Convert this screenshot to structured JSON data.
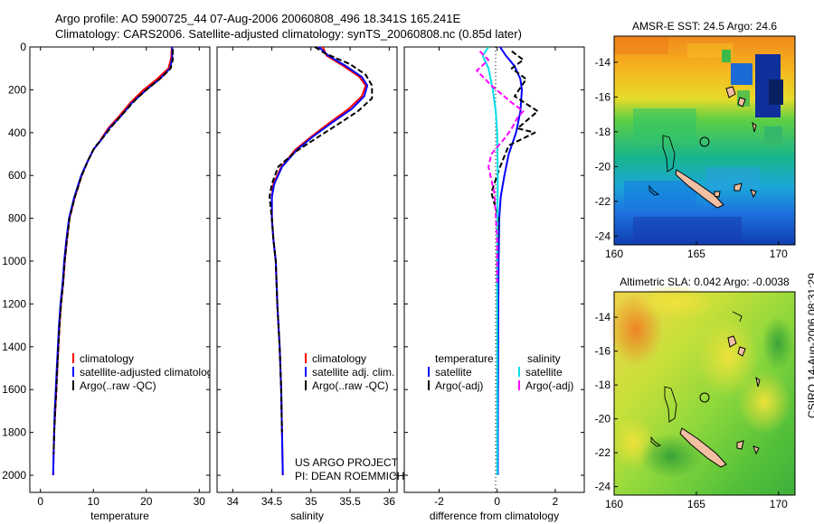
{
  "header": {
    "line1": "Argo profile: AO 5900725_44 07-Aug-2006 20060808_496 18.341S 165.241E",
    "line2": "Climatology: CARS2006. Satellite-adjusted climatology: synTS_20060808.nc (0.85d later)"
  },
  "colors": {
    "climatology": "#ff0000",
    "satellite": "#0000ff",
    "argo": "#000000",
    "sal_satellite": "#00e0e8",
    "sal_argo": "#ff00ff"
  },
  "project": {
    "line1": "US ARGO PROJECT",
    "line2": "PI: DEAN ROEMMICH"
  },
  "credit": "CSIRO 14-Aug-2006 08:31:29",
  "chart_data": [
    {
      "type": "line",
      "id": "temperature",
      "xlabel": "temperature",
      "ylabel": "",
      "xlim": [
        -2,
        32
      ],
      "ylim": [
        0,
        2080
      ],
      "y_inverted": true,
      "xticks": [
        "0",
        "10",
        "20",
        "30"
      ],
      "yticks": [
        "0",
        "200",
        "400",
        "600",
        "800",
        "1000",
        "1200",
        "1400",
        "1600",
        "1800",
        "2000"
      ],
      "legend": [
        "climatology",
        "satellite-adjusted climatology",
        "Argo(..raw -QC)"
      ],
      "series": [
        {
          "name": "climatology",
          "color": "#ff0000",
          "dash": "",
          "points": [
            [
              24.8,
              0
            ],
            [
              24.7,
              50
            ],
            [
              24.2,
              100
            ],
            [
              22,
              150
            ],
            [
              19.5,
              200
            ],
            [
              17,
              260
            ],
            [
              15,
              320
            ],
            [
              12.8,
              380
            ],
            [
              11.2,
              440
            ],
            [
              10,
              480
            ],
            [
              8.8,
              540
            ],
            [
              7.8,
              600
            ],
            [
              6.5,
              700
            ],
            [
              5.5,
              800
            ],
            [
              5,
              900
            ],
            [
              4.6,
              1000
            ],
            [
              4.3,
              1100
            ],
            [
              3.9,
              1200
            ],
            [
              3.6,
              1300
            ],
            [
              3.4,
              1400
            ],
            [
              3.2,
              1500
            ],
            [
              3,
              1600
            ],
            [
              2.8,
              1700
            ],
            [
              2.6,
              1800
            ],
            [
              2.5,
              1900
            ],
            [
              2.4,
              2000
            ]
          ]
        },
        {
          "name": "satellite-adjusted climatology",
          "color": "#0000ff",
          "dash": "",
          "points": [
            [
              24.9,
              0
            ],
            [
              24.9,
              50
            ],
            [
              24.5,
              100
            ],
            [
              22.5,
              150
            ],
            [
              20,
              200
            ],
            [
              17.3,
              260
            ],
            [
              15.3,
              320
            ],
            [
              13,
              380
            ],
            [
              11.3,
              440
            ],
            [
              10,
              480
            ],
            [
              8.8,
              540
            ],
            [
              7.7,
              600
            ],
            [
              6.4,
              700
            ],
            [
              5.4,
              800
            ],
            [
              4.9,
              900
            ],
            [
              4.5,
              1000
            ],
            [
              4.2,
              1100
            ],
            [
              3.8,
              1200
            ],
            [
              3.5,
              1300
            ],
            [
              3.3,
              1400
            ],
            [
              3.1,
              1500
            ],
            [
              2.9,
              1600
            ],
            [
              2.7,
              1700
            ],
            [
              2.6,
              1800
            ],
            [
              2.5,
              1900
            ],
            [
              2.4,
              2000
            ]
          ]
        },
        {
          "name": "Argo(..raw -QC)",
          "color": "#000000",
          "dash": "6,3",
          "points": [
            [
              25,
              10
            ],
            [
              25,
              60
            ],
            [
              24.6,
              100
            ],
            [
              23,
              140
            ],
            [
              20.5,
              190
            ],
            [
              18.2,
              240
            ],
            [
              16,
              300
            ],
            [
              13.5,
              370
            ],
            [
              11.6,
              430
            ],
            [
              10.2,
              470
            ],
            [
              9,
              530
            ],
            [
              7.8,
              600
            ],
            [
              6.5,
              700
            ],
            [
              5.5,
              800
            ],
            [
              5,
              900
            ],
            [
              4.6,
              1000
            ],
            [
              4.3,
              1100
            ],
            [
              3.9,
              1200
            ],
            [
              3.6,
              1300
            ],
            [
              3.4,
              1400
            ],
            [
              3.2,
              1500
            ],
            [
              3,
              1600
            ],
            [
              2.8,
              1700
            ],
            [
              2.6,
              1800
            ],
            [
              2.5,
              1900
            ]
          ]
        }
      ]
    },
    {
      "type": "line",
      "id": "salinity",
      "xlabel": "salinity",
      "xlim": [
        33.8,
        36.1
      ],
      "ylim": [
        0,
        2080
      ],
      "y_inverted": true,
      "xticks": [
        "34",
        "34.5",
        "35",
        "35.5",
        "36"
      ],
      "legend": [
        "climatology",
        "satellite adj. clim.",
        "Argo(..raw -QC)"
      ],
      "series": [
        {
          "name": "climatology",
          "color": "#ff0000",
          "dash": "",
          "points": [
            [
              35.15,
              0
            ],
            [
              35.2,
              40
            ],
            [
              35.42,
              90
            ],
            [
              35.62,
              140
            ],
            [
              35.7,
              180
            ],
            [
              35.65,
              230
            ],
            [
              35.48,
              290
            ],
            [
              35.25,
              350
            ],
            [
              35.0,
              420
            ],
            [
              34.8,
              480
            ],
            [
              34.62,
              560
            ],
            [
              34.52,
              640
            ],
            [
              34.5,
              700
            ],
            [
              34.5,
              800
            ],
            [
              34.52,
              900
            ],
            [
              34.55,
              1000
            ],
            [
              34.57,
              1200
            ],
            [
              34.6,
              1400
            ],
            [
              34.62,
              1600
            ],
            [
              34.63,
              1800
            ],
            [
              34.64,
              2000
            ]
          ]
        },
        {
          "name": "satellite adj. clim.",
          "color": "#0000ff",
          "dash": "",
          "points": [
            [
              35.1,
              0
            ],
            [
              35.22,
              40
            ],
            [
              35.45,
              90
            ],
            [
              35.65,
              140
            ],
            [
              35.72,
              180
            ],
            [
              35.68,
              230
            ],
            [
              35.52,
              290
            ],
            [
              35.28,
              350
            ],
            [
              35.02,
              420
            ],
            [
              34.82,
              480
            ],
            [
              34.63,
              560
            ],
            [
              34.53,
              640
            ],
            [
              34.5,
              700
            ],
            [
              34.5,
              800
            ],
            [
              34.52,
              900
            ],
            [
              34.55,
              1000
            ],
            [
              34.57,
              1200
            ],
            [
              34.6,
              1400
            ],
            [
              34.62,
              1600
            ],
            [
              34.63,
              1800
            ],
            [
              34.64,
              2000
            ]
          ]
        },
        {
          "name": "Argo(..raw -QC)",
          "color": "#000000",
          "dash": "6,3",
          "points": [
            [
              35.05,
              0
            ],
            [
              35.18,
              30
            ],
            [
              35.5,
              80
            ],
            [
              35.7,
              130
            ],
            [
              35.78,
              180
            ],
            [
              35.78,
              240
            ],
            [
              35.6,
              300
            ],
            [
              35.35,
              360
            ],
            [
              35.05,
              430
            ],
            [
              34.8,
              490
            ],
            [
              34.58,
              560
            ],
            [
              34.5,
              640
            ],
            [
              34.47,
              700
            ],
            [
              34.5,
              800
            ],
            [
              34.52,
              900
            ],
            [
              34.55,
              1000
            ],
            [
              34.57,
              1200
            ],
            [
              34.6,
              1400
            ],
            [
              34.62,
              1600
            ],
            [
              34.63,
              1800
            ]
          ]
        }
      ]
    },
    {
      "type": "line",
      "id": "difference",
      "xlabel": "difference from climatology",
      "xlim": [
        -3.2,
        3.0
      ],
      "ylim": [
        0,
        2080
      ],
      "y_inverted": true,
      "xticks": [
        "-2",
        "0",
        "2"
      ],
      "legend_titles": [
        "temperature",
        "salinity"
      ],
      "legend": [
        "satellite",
        "Argo(-adj)",
        "satellite",
        "Argo(-adj)"
      ],
      "series": [
        {
          "name": "temperature satellite",
          "color": "#0000ff",
          "dash": "",
          "points": [
            [
              0.1,
              0
            ],
            [
              0.3,
              40
            ],
            [
              0.6,
              90
            ],
            [
              0.8,
              150
            ],
            [
              0.85,
              200
            ],
            [
              0.8,
              300
            ],
            [
              0.65,
              400
            ],
            [
              0.4,
              500
            ],
            [
              0.25,
              600
            ],
            [
              0.12,
              700
            ],
            [
              0.07,
              800
            ],
            [
              0.05,
              1000
            ],
            [
              0.04,
              1200
            ],
            [
              0.03,
              1500
            ],
            [
              0.02,
              1800
            ],
            [
              0.02,
              2000
            ]
          ]
        },
        {
          "name": "temperature Argo(-adj)",
          "color": "#000000",
          "dash": "6,3",
          "points": [
            [
              0.5,
              20
            ],
            [
              0.9,
              60
            ],
            [
              0.5,
              100
            ],
            [
              1.0,
              150
            ],
            [
              0.6,
              230
            ],
            [
              1.4,
              300
            ],
            [
              0.7,
              380
            ],
            [
              1.3,
              400
            ],
            [
              0.4,
              460
            ],
            [
              0.1,
              560
            ],
            [
              -0.2,
              680
            ],
            [
              0.05,
              800
            ],
            [
              0,
              1000
            ],
            [
              0.01,
              1200
            ],
            [
              0.01,
              1500
            ]
          ]
        },
        {
          "name": "salinity satellite",
          "color": "#00e0e8",
          "dash": "",
          "points": [
            [
              -0.3,
              0
            ],
            [
              -0.5,
              40
            ],
            [
              -0.3,
              100
            ],
            [
              -0.15,
              200
            ],
            [
              -0.05,
              300
            ],
            [
              0,
              400
            ],
            [
              0.02,
              600
            ],
            [
              0.01,
              800
            ],
            [
              0,
              1000
            ],
            [
              0,
              1200
            ],
            [
              0,
              1500
            ],
            [
              0,
              1800
            ],
            [
              0,
              2000
            ]
          ]
        },
        {
          "name": "salinity Argo(-adj)",
          "color": "#ff00ff",
          "dash": "6,3",
          "points": [
            [
              -0.6,
              20
            ],
            [
              -0.3,
              60
            ],
            [
              -0.7,
              110
            ],
            [
              -0.2,
              180
            ],
            [
              0.5,
              260
            ],
            [
              0.9,
              300
            ],
            [
              0.7,
              330
            ],
            [
              0.5,
              380
            ],
            [
              0.3,
              420
            ],
            [
              -0.2,
              500
            ],
            [
              -0.3,
              560
            ],
            [
              -0.1,
              680
            ],
            [
              -0.05,
              780
            ],
            [
              0,
              900
            ],
            [
              0,
              1000
            ],
            [
              0,
              1100
            ]
          ]
        }
      ]
    },
    {
      "type": "heatmap",
      "id": "sst_map",
      "title": "AMSR-E SST: 24.5 Argo: 24.6",
      "xlim": [
        160,
        171
      ],
      "ylim": [
        -24.5,
        -12.5
      ],
      "xticks": [
        "160",
        "165",
        "170"
      ],
      "yticks": [
        "-14",
        "-16",
        "-18",
        "-20",
        "-22",
        "-24"
      ],
      "argo_position": [
        165.241,
        -18.341
      ]
    },
    {
      "type": "heatmap",
      "id": "sla_map",
      "title": "Altimetric SLA: 0.042 Argo: -0.0038",
      "xlim": [
        160,
        171
      ],
      "ylim": [
        -24.5,
        -12.5
      ],
      "xticks": [
        "160",
        "165",
        "170"
      ],
      "yticks": [
        "-14",
        "-16",
        "-18",
        "-20",
        "-22",
        "-24"
      ],
      "argo_position": [
        165.241,
        -18.341
      ]
    }
  ]
}
